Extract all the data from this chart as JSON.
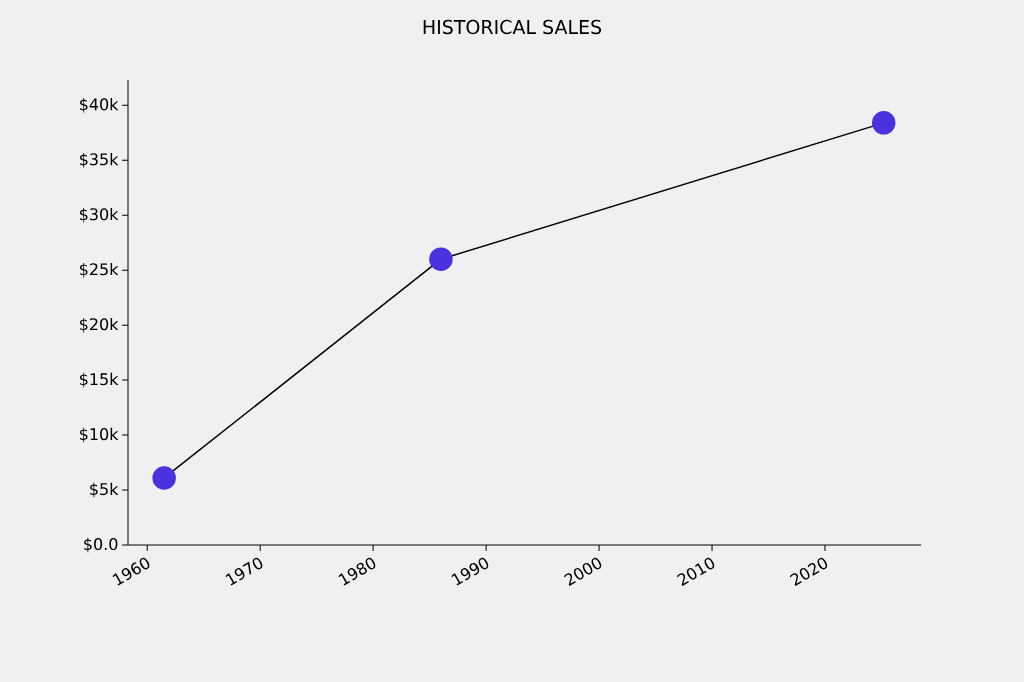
{
  "chart_data": {
    "type": "line",
    "title": "HISTORICAL SALES",
    "x": [
      1961.5,
      1986,
      2025.2
    ],
    "series": [
      {
        "color": "#4b32e0",
        "values": [
          6100,
          26000,
          38400
        ]
      }
    ],
    "xlim": [
      1958.3,
      2028.5
    ],
    "ylim": [
      0,
      42300
    ],
    "xticks": [
      1960,
      1970,
      1980,
      1990,
      2000,
      2010,
      2020
    ],
    "yticks": [
      {
        "value": 0,
        "label": "$0.0"
      },
      {
        "value": 5000,
        "label": "$5k"
      },
      {
        "value": 10000,
        "label": "$10k"
      },
      {
        "value": 15000,
        "label": "$15k"
      },
      {
        "value": 20000,
        "label": "$20k"
      },
      {
        "value": 25000,
        "label": "$25k"
      },
      {
        "value": 30000,
        "label": "$30k"
      },
      {
        "value": 35000,
        "label": "$35k"
      },
      {
        "value": 40000,
        "label": "$40k"
      }
    ],
    "grid": false,
    "marker": "circle",
    "line_style": "solid"
  }
}
